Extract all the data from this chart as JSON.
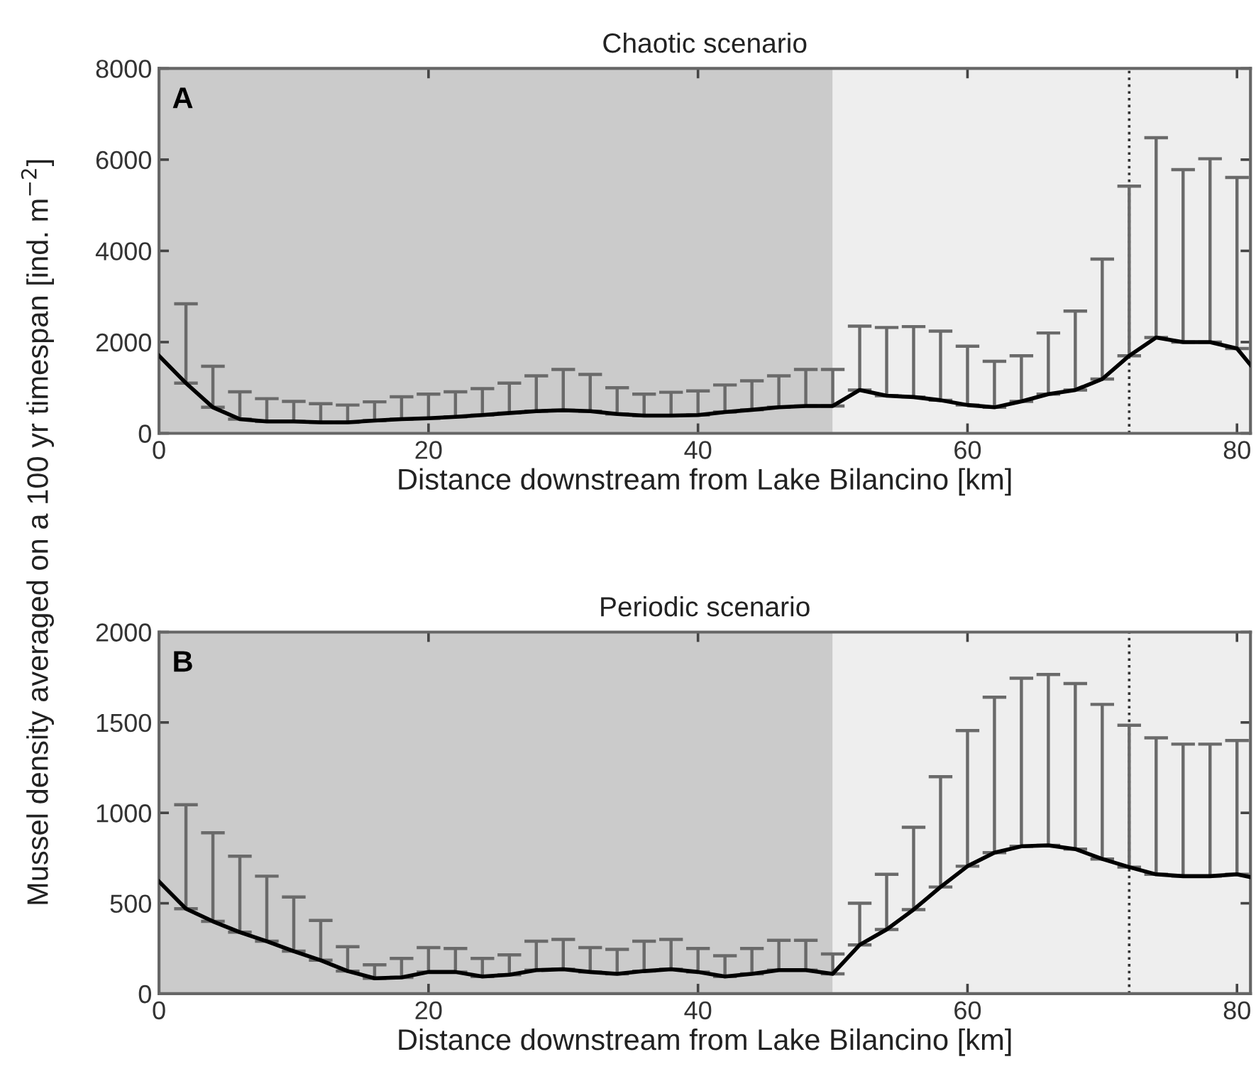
{
  "chart_data": [
    {
      "type": "line",
      "title": "Chaotic scenario",
      "xlabel": "Distance downstream from Lake Bilancino [km]",
      "ylabel": "Mussel density averaged on a 100 yr timespan [ind. m$^{−2}$]",
      "x": [
        0,
        2,
        4,
        6,
        8,
        10,
        12,
        14,
        16,
        18,
        20,
        22,
        24,
        26,
        28,
        30,
        32,
        34,
        36,
        38,
        40,
        42,
        44,
        46,
        48,
        50,
        52,
        54,
        56,
        58,
        60,
        62,
        64,
        66,
        68,
        70,
        72,
        74,
        76,
        78,
        80,
        81
      ],
      "series": [
        {
          "color": "#000000",
          "values": [
            1700,
            1100,
            570,
            310,
            260,
            260,
            240,
            240,
            280,
            310,
            330,
            360,
            400,
            445,
            485,
            505,
            485,
            425,
            390,
            390,
            400,
            465,
            515,
            570,
            600,
            600,
            950,
            825,
            795,
            725,
            620,
            570,
            700,
            860,
            950,
            1190,
            1700,
            2100,
            2000,
            2000,
            1860,
            1500
          ],
          "errors": [
            null,
            [
              1100,
              2840
            ],
            [
              570,
              1470
            ],
            [
              310,
              910
            ],
            [
              260,
              760
            ],
            [
              260,
              700
            ],
            [
              240,
              650
            ],
            [
              240,
              620
            ],
            [
              280,
              690
            ],
            [
              310,
              800
            ],
            [
              330,
              860
            ],
            [
              360,
              910
            ],
            [
              400,
              980
            ],
            [
              445,
              1100
            ],
            [
              485,
              1260
            ],
            [
              505,
              1400
            ],
            [
              485,
              1290
            ],
            [
              425,
              1000
            ],
            [
              390,
              860
            ],
            [
              390,
              900
            ],
            [
              400,
              930
            ],
            [
              465,
              1060
            ],
            [
              515,
              1150
            ],
            [
              570,
              1260
            ],
            [
              600,
              1400
            ],
            [
              600,
              1400
            ],
            [
              950,
              2350
            ],
            [
              825,
              2320
            ],
            [
              795,
              2340
            ],
            [
              725,
              2240
            ],
            [
              620,
              1910
            ],
            [
              570,
              1580
            ],
            [
              700,
              1700
            ],
            [
              860,
              2200
            ],
            [
              950,
              2680
            ],
            [
              1190,
              3820
            ],
            [
              1700,
              5420
            ],
            [
              2100,
              6480
            ],
            [
              2000,
              5780
            ],
            [
              2000,
              6020
            ],
            [
              1860,
              5610
            ],
            null
          ]
        }
      ],
      "xlim": [
        0,
        81
      ],
      "xticks": [
        0,
        20,
        40,
        60,
        80
      ],
      "ylim": [
        0,
        8000
      ],
      "yticks": [
        0,
        2000,
        4000,
        6000,
        8000
      ],
      "bands": [
        {
          "axis": "x",
          "from": 0,
          "to": 50,
          "color": "#cbcbcb"
        },
        {
          "axis": "x",
          "from": 50,
          "to": 81,
          "color": "#eeeeee"
        }
      ],
      "ref_lines": [
        {
          "axis": "x",
          "value": 72,
          "color": "#333333",
          "line_style": "dotted"
        }
      ],
      "annotations": [
        "A"
      ],
      "grid": false,
      "legend": false,
      "marker": "none",
      "line_style": "solid"
    },
    {
      "type": "line",
      "title": "Periodic scenario",
      "xlabel": "Distance downstream from Lake Bilancino [km]",
      "x": [
        0,
        2,
        4,
        6,
        8,
        10,
        12,
        14,
        16,
        18,
        20,
        22,
        24,
        26,
        28,
        30,
        32,
        34,
        36,
        38,
        40,
        42,
        44,
        46,
        48,
        50,
        52,
        54,
        56,
        58,
        60,
        62,
        64,
        66,
        68,
        70,
        72,
        74,
        76,
        78,
        80,
        81
      ],
      "series": [
        {
          "color": "#000000",
          "values": [
            620,
            470,
            400,
            340,
            290,
            235,
            185,
            125,
            85,
            90,
            120,
            120,
            95,
            105,
            130,
            135,
            120,
            110,
            125,
            135,
            120,
            95,
            110,
            130,
            130,
            110,
            270,
            355,
            465,
            590,
            705,
            780,
            815,
            820,
            800,
            745,
            700,
            660,
            650,
            650,
            660,
            645
          ],
          "errors": [
            null,
            [
              470,
              1045
            ],
            [
              400,
              890
            ],
            [
              340,
              760
            ],
            [
              290,
              650
            ],
            [
              235,
              535
            ],
            [
              185,
              405
            ],
            [
              125,
              260
            ],
            [
              85,
              160
            ],
            [
              90,
              195
            ],
            [
              120,
              255
            ],
            [
              120,
              250
            ],
            [
              95,
              195
            ],
            [
              105,
              215
            ],
            [
              130,
              290
            ],
            [
              135,
              300
            ],
            [
              120,
              255
            ],
            [
              110,
              245
            ],
            [
              125,
              290
            ],
            [
              135,
              300
            ],
            [
              120,
              250
            ],
            [
              95,
              210
            ],
            [
              110,
              250
            ],
            [
              130,
              295
            ],
            [
              130,
              295
            ],
            [
              110,
              220
            ],
            [
              270,
              500
            ],
            [
              355,
              660
            ],
            [
              465,
              920
            ],
            [
              590,
              1200
            ],
            [
              705,
              1455
            ],
            [
              780,
              1640
            ],
            [
              815,
              1745
            ],
            [
              820,
              1765
            ],
            [
              800,
              1715
            ],
            [
              745,
              1600
            ],
            [
              700,
              1485
            ],
            [
              660,
              1415
            ],
            [
              650,
              1380
            ],
            [
              650,
              1380
            ],
            [
              660,
              1400
            ],
            null
          ]
        }
      ],
      "xlim": [
        0,
        81
      ],
      "xticks": [
        0,
        20,
        40,
        60,
        80
      ],
      "ylim": [
        0,
        2000
      ],
      "yticks": [
        0,
        500,
        1000,
        1500,
        2000
      ],
      "bands": [
        {
          "axis": "x",
          "from": 0,
          "to": 50,
          "color": "#cbcbcb"
        },
        {
          "axis": "x",
          "from": 50,
          "to": 81,
          "color": "#eeeeee"
        }
      ],
      "ref_lines": [
        {
          "axis": "x",
          "value": 72,
          "color": "#333333",
          "line_style": "dotted"
        }
      ],
      "annotations": [
        "B"
      ],
      "grid": false,
      "legend": false,
      "marker": "none",
      "line_style": "solid"
    }
  ]
}
